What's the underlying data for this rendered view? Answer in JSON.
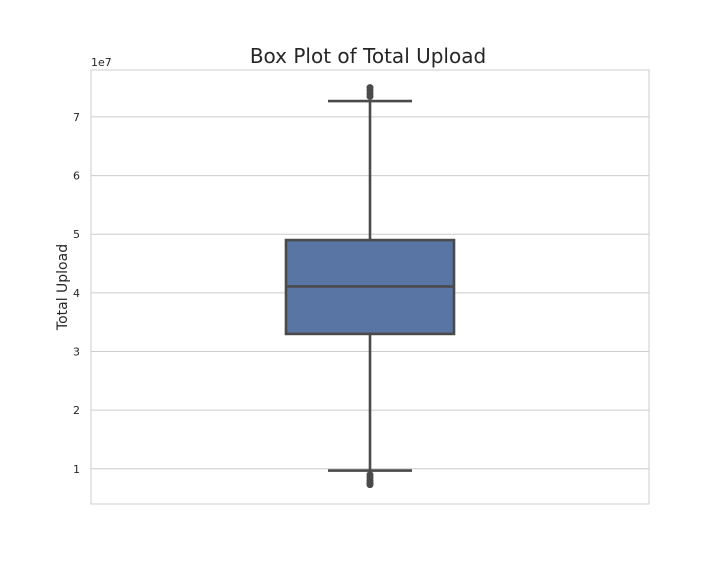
{
  "chart_data": {
    "type": "box",
    "title": "Box Plot of Total Upload",
    "xlabel": "",
    "ylabel": "Total Upload",
    "y_offset_label": "1e7",
    "ylim": [
      0.4,
      7.8
    ],
    "y_ticks": [
      1,
      2,
      3,
      4,
      5,
      6,
      7
    ],
    "y_tick_labels": [
      "1",
      "2",
      "3",
      "4",
      "5",
      "6",
      "7"
    ],
    "grid": true,
    "box": {
      "whisker_low": 0.97,
      "q1": 3.3,
      "median": 4.11,
      "q3": 4.9,
      "whisker_high": 7.27,
      "outliers_low": [
        0.9,
        0.85,
        0.8,
        0.76,
        0.73
      ],
      "outliers_high": [
        7.35,
        7.4,
        7.45,
        7.5
      ]
    },
    "colors": {
      "box_fill": "#5875a4",
      "line": "#4a4a4a",
      "grid": "#cccccc",
      "spine": "#cccccc"
    }
  }
}
